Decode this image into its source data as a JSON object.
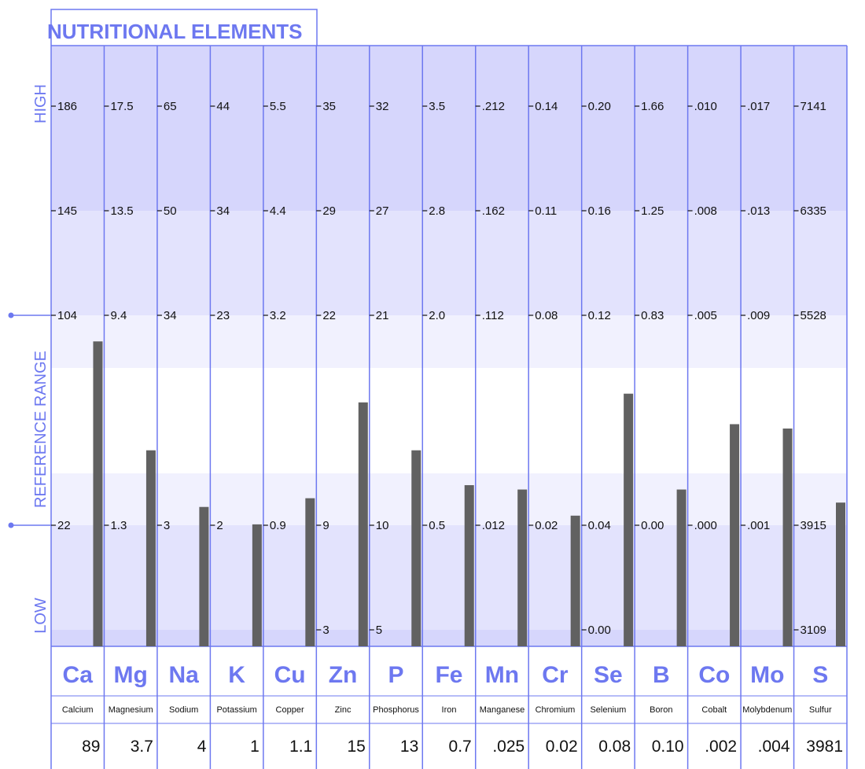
{
  "chart_data": {
    "type": "bar",
    "title": "NUTRITIONAL ELEMENTS",
    "side_labels": {
      "high": "HIGH",
      "reference": "REFERENCE   RANGE",
      "low": "LOW"
    },
    "elements": [
      {
        "symbol": "Ca",
        "name": "Calcium",
        "ticks": [
          "186",
          "145",
          "104",
          "22"
        ],
        "value": "89",
        "level": 0.7
      },
      {
        "symbol": "Mg",
        "name": "Magnesium",
        "ticks": [
          "17.5",
          "13.5",
          "9.4",
          "1.3"
        ],
        "value": "3.7",
        "level": 0.45
      },
      {
        "symbol": "Na",
        "name": "Sodium",
        "ticks": [
          "65",
          "50",
          "34",
          "3"
        ],
        "value": "4",
        "level": 0.32
      },
      {
        "symbol": "K",
        "name": "Potassium",
        "ticks": [
          "44",
          "34",
          "23",
          "2"
        ],
        "value": "1",
        "level": 0.28
      },
      {
        "symbol": "Cu",
        "name": "Copper",
        "ticks": [
          "5.5",
          "4.4",
          "3.2",
          "0.9"
        ],
        "value": "1.1",
        "level": 0.34
      },
      {
        "symbol": "Zn",
        "name": "Zinc",
        "ticks": [
          "35",
          "29",
          "22",
          "9",
          "3"
        ],
        "value": "15",
        "level": 0.56
      },
      {
        "symbol": "P",
        "name": "Phosphorus",
        "ticks": [
          "32",
          "27",
          "21",
          "10",
          "5"
        ],
        "value": "13",
        "level": 0.45
      },
      {
        "symbol": "Fe",
        "name": "Iron",
        "ticks": [
          "3.5",
          "2.8",
          "2.0",
          "0.5"
        ],
        "value": "0.7",
        "level": 0.37
      },
      {
        "symbol": "Mn",
        "name": "Manganese",
        "ticks": [
          ".212",
          ".162",
          ".112",
          ".012"
        ],
        "value": ".025",
        "level": 0.36
      },
      {
        "symbol": "Cr",
        "name": "Chromium",
        "ticks": [
          "0.14",
          "0.11",
          "0.08",
          "0.02"
        ],
        "value": "0.02",
        "level": 0.3
      },
      {
        "symbol": "Se",
        "name": "Selenium",
        "ticks": [
          "0.20",
          "0.16",
          "0.12",
          "0.04",
          "0.00"
        ],
        "value": "0.08",
        "level": 0.58
      },
      {
        "symbol": "B",
        "name": "Boron",
        "ticks": [
          "1.66",
          "1.25",
          "0.83",
          "0.00"
        ],
        "value": "0.10",
        "level": 0.36
      },
      {
        "symbol": "Co",
        "name": "Cobalt",
        "ticks": [
          ".010",
          ".008",
          ".005",
          ".000"
        ],
        "value": ".002",
        "level": 0.51
      },
      {
        "symbol": "Mo",
        "name": "Molybdenum",
        "ticks": [
          ".017",
          ".013",
          ".009",
          ".001"
        ],
        "value": ".004",
        "level": 0.5
      },
      {
        "symbol": "S",
        "name": "Sulfur",
        "ticks": [
          "7141",
          "6335",
          "5528",
          "3915",
          "3109"
        ],
        "value": "3981",
        "level": 0.33
      }
    ],
    "colors": {
      "accent": "#6d78f0",
      "band_high": "#d6d6fc",
      "band_mid": "#e3e3fd",
      "band_light": "#f1f1fe",
      "band_ref": "#ffffff",
      "bar": "#616161"
    }
  }
}
